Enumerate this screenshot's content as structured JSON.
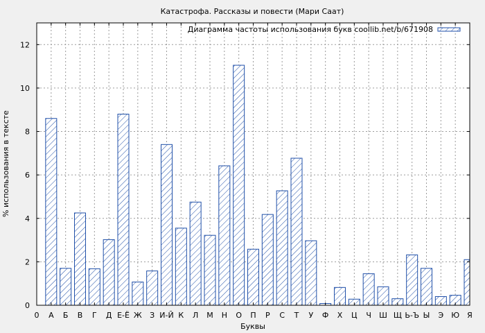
{
  "chart_data": {
    "type": "bar",
    "title": "Катастрофа. Рассказы и повести (Мари Саат)",
    "xlabel": "Буквы",
    "ylabel": "% использования в тексте",
    "legend_label": "Диаграмма частоты использования букв coollib.net/b/671908",
    "legend_position": "top-right",
    "grid": true,
    "ylim": [
      0,
      13
    ],
    "yticks": [
      0,
      2,
      4,
      6,
      8,
      10,
      12
    ],
    "x_start_label": "0",
    "categories": [
      "А",
      "Б",
      "В",
      "Г",
      "Д",
      "Е-Ё",
      "Ж",
      "З",
      "И-Й",
      "К",
      "Л",
      "М",
      "Н",
      "О",
      "П",
      "Р",
      "С",
      "Т",
      "У",
      "Ф",
      "Х",
      "Ц",
      "Ч",
      "Ш",
      "Щ",
      "Ь-Ъ",
      "Ы",
      "Э",
      "Ю",
      "Я"
    ],
    "values": [
      8.6,
      1.7,
      4.25,
      1.68,
      3.02,
      8.8,
      1.07,
      1.58,
      7.4,
      3.55,
      4.75,
      3.22,
      6.42,
      11.05,
      2.58,
      4.18,
      5.27,
      6.77,
      2.97,
      0.08,
      0.82,
      0.28,
      1.45,
      0.85,
      0.3,
      2.32,
      1.7,
      0.4,
      0.46,
      2.1
    ],
    "bar_color": "#1f4fa8",
    "background_color": "#ffffff",
    "page_background": "#f0f0f0"
  }
}
